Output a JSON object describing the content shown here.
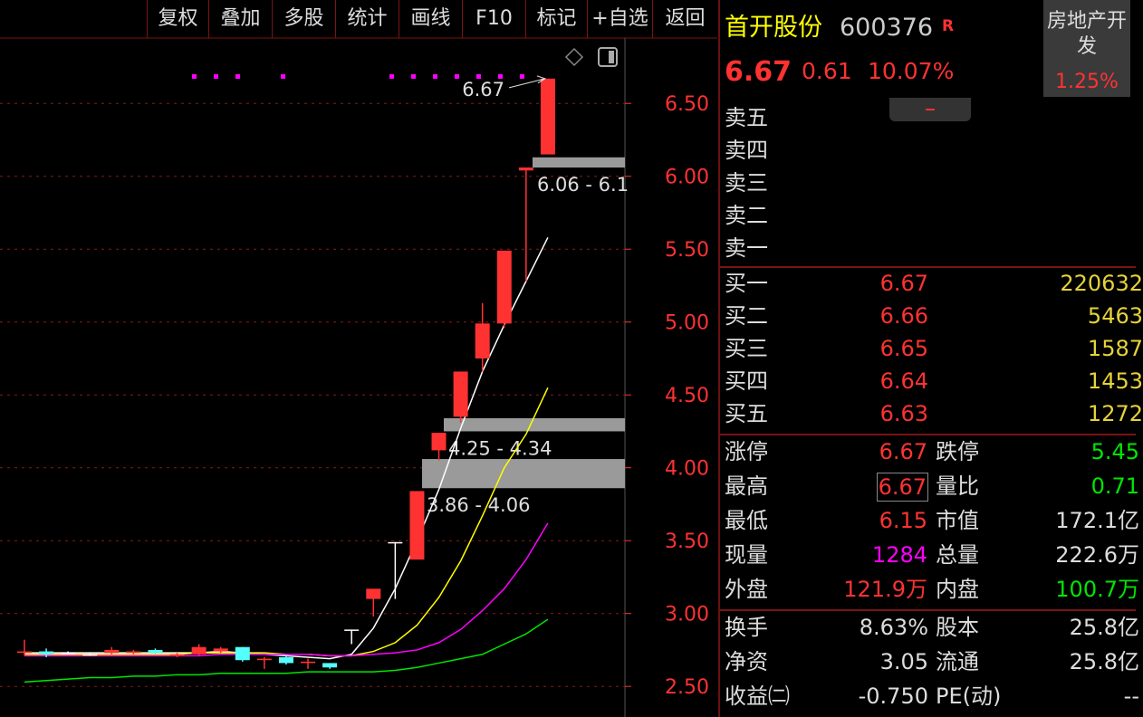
{
  "toolbar": [
    "复权",
    "叠加",
    "多股",
    "统计",
    "画线",
    "F10",
    "标记",
    "+自选",
    "返回"
  ],
  "header": {
    "name": "首开股份",
    "code": "600376",
    "badge": "R",
    "price": "6.67",
    "change": "0.61",
    "change_pct": "10.07%",
    "sector": "房地产开发",
    "sector_pct": "1.25%"
  },
  "sell": [
    "卖五",
    "卖四",
    "卖三",
    "卖二",
    "卖一"
  ],
  "buy": [
    [
      "买一",
      "6.67",
      "220632"
    ],
    [
      "买二",
      "6.66",
      "5463"
    ],
    [
      "买三",
      "6.65",
      "1587"
    ],
    [
      "买四",
      "6.64",
      "1453"
    ],
    [
      "买五",
      "6.63",
      "1272"
    ]
  ],
  "stats": [
    [
      "涨停",
      "6.67",
      "跌停",
      "5.45"
    ],
    [
      "最高",
      "6.67",
      "量比",
      "0.71"
    ],
    [
      "最低",
      "6.15",
      "市值",
      "172.1亿"
    ],
    [
      "现量",
      "1284",
      "总量",
      "222.6万"
    ],
    [
      "外盘",
      "121.9万",
      "内盘",
      "100.7万"
    ]
  ],
  "finance": [
    [
      "换手",
      "8.63%",
      "股本",
      "25.8亿"
    ],
    [
      "净资",
      "3.05",
      "流通",
      "25.8亿"
    ],
    [
      "收益㈡",
      "-0.750",
      "PE(动)",
      "--"
    ]
  ],
  "chart": {
    "type": "candlestick",
    "ylim": [
      2.29,
      6.93
    ],
    "yticks": [
      {
        "value": 2.5,
        "label": "2.50"
      },
      {
        "value": 3,
        "label": "3.00"
      },
      {
        "value": 3.5,
        "label": "3.50"
      },
      {
        "value": 4,
        "label": "4.00"
      },
      {
        "value": 4.5,
        "label": "4.50"
      },
      {
        "value": 5,
        "label": "5.00"
      },
      {
        "value": 5.5,
        "label": "5.50"
      },
      {
        "value": 6,
        "label": "6.00"
      },
      {
        "value": 6.5,
        "label": "6.50"
      }
    ],
    "open": [
      2.73,
      2.74,
      2.73,
      2.72,
      2.73,
      2.73,
      2.75,
      2.71,
      2.72,
      2.74,
      2.77,
      2.68,
      2.7,
      2.66,
      2.66,
      2.89,
      3.1,
      3.49,
      3.37,
      4.12,
      4.35,
      4.75,
      4.99,
      6.04,
      6.15
    ],
    "high": [
      2.82,
      2.76,
      2.74,
      2.73,
      2.77,
      2.75,
      2.76,
      2.73,
      2.79,
      2.77,
      2.77,
      2.7,
      2.71,
      2.69,
      2.66,
      2.89,
      3.17,
      3.49,
      3.84,
      4.24,
      4.66,
      5.13,
      5.49,
      6.06,
      6.67
    ],
    "low": [
      2.71,
      2.7,
      2.72,
      2.71,
      2.72,
      2.72,
      2.72,
      2.7,
      2.71,
      2.73,
      2.67,
      2.62,
      2.65,
      2.62,
      2.62,
      2.79,
      2.98,
      3.1,
      3.37,
      4.05,
      4.31,
      4.66,
      4.96,
      5.28,
      6.15
    ],
    "close": [
      2.74,
      2.72,
      2.73,
      2.72,
      2.75,
      2.74,
      2.73,
      2.72,
      2.77,
      2.76,
      2.68,
      2.69,
      2.66,
      2.67,
      2.63,
      2.89,
      3.17,
      3.49,
      3.84,
      4.24,
      4.66,
      4.99,
      5.49,
      6.06,
      6.67
    ],
    "up_color": "#ff3232",
    "down_color": "#54ffff",
    "flat_color": "#ffffff",
    "ma": [
      {
        "color": "#ffffff",
        "values": [
          2.73,
          2.73,
          2.73,
          2.73,
          2.73,
          2.73,
          2.73,
          2.73,
          2.73,
          2.74,
          2.73,
          2.72,
          2.71,
          2.7,
          2.69,
          2.72,
          2.9,
          3.17,
          3.5,
          3.85,
          4.27,
          4.66,
          4.98,
          5.28,
          5.58
        ]
      },
      {
        "color": "#ffff00",
        "values": [
          2.72,
          2.72,
          2.72,
          2.72,
          2.72,
          2.72,
          2.72,
          2.72,
          2.73,
          2.73,
          2.73,
          2.73,
          2.72,
          2.72,
          2.71,
          2.71,
          2.74,
          2.8,
          2.92,
          3.11,
          3.36,
          3.67,
          4.0,
          4.23,
          4.55
        ]
      },
      {
        "color": "#ff00ff",
        "values": [
          2.71,
          2.71,
          2.71,
          2.71,
          2.71,
          2.71,
          2.71,
          2.71,
          2.71,
          2.72,
          2.72,
          2.72,
          2.72,
          2.72,
          2.71,
          2.71,
          2.72,
          2.73,
          2.75,
          2.8,
          2.89,
          3.02,
          3.17,
          3.37,
          3.62
        ]
      },
      {
        "color": "#00e600",
        "values": [
          2.53,
          2.54,
          2.55,
          2.56,
          2.56,
          2.57,
          2.57,
          2.58,
          2.58,
          2.59,
          2.59,
          2.59,
          2.59,
          2.6,
          2.6,
          2.6,
          2.6,
          2.61,
          2.63,
          2.66,
          2.69,
          2.72,
          2.79,
          2.86,
          2.96
        ]
      }
    ],
    "zones": [
      {
        "low": 6.06,
        "high": 6.13,
        "label": "6.06 - 6.1"
      },
      {
        "low": 4.25,
        "high": 4.34,
        "label": "4.25 - 4.34"
      },
      {
        "low": 3.86,
        "high": 4.06,
        "label": "3.86 - 4.06"
      }
    ],
    "last_price": 6.67
  }
}
